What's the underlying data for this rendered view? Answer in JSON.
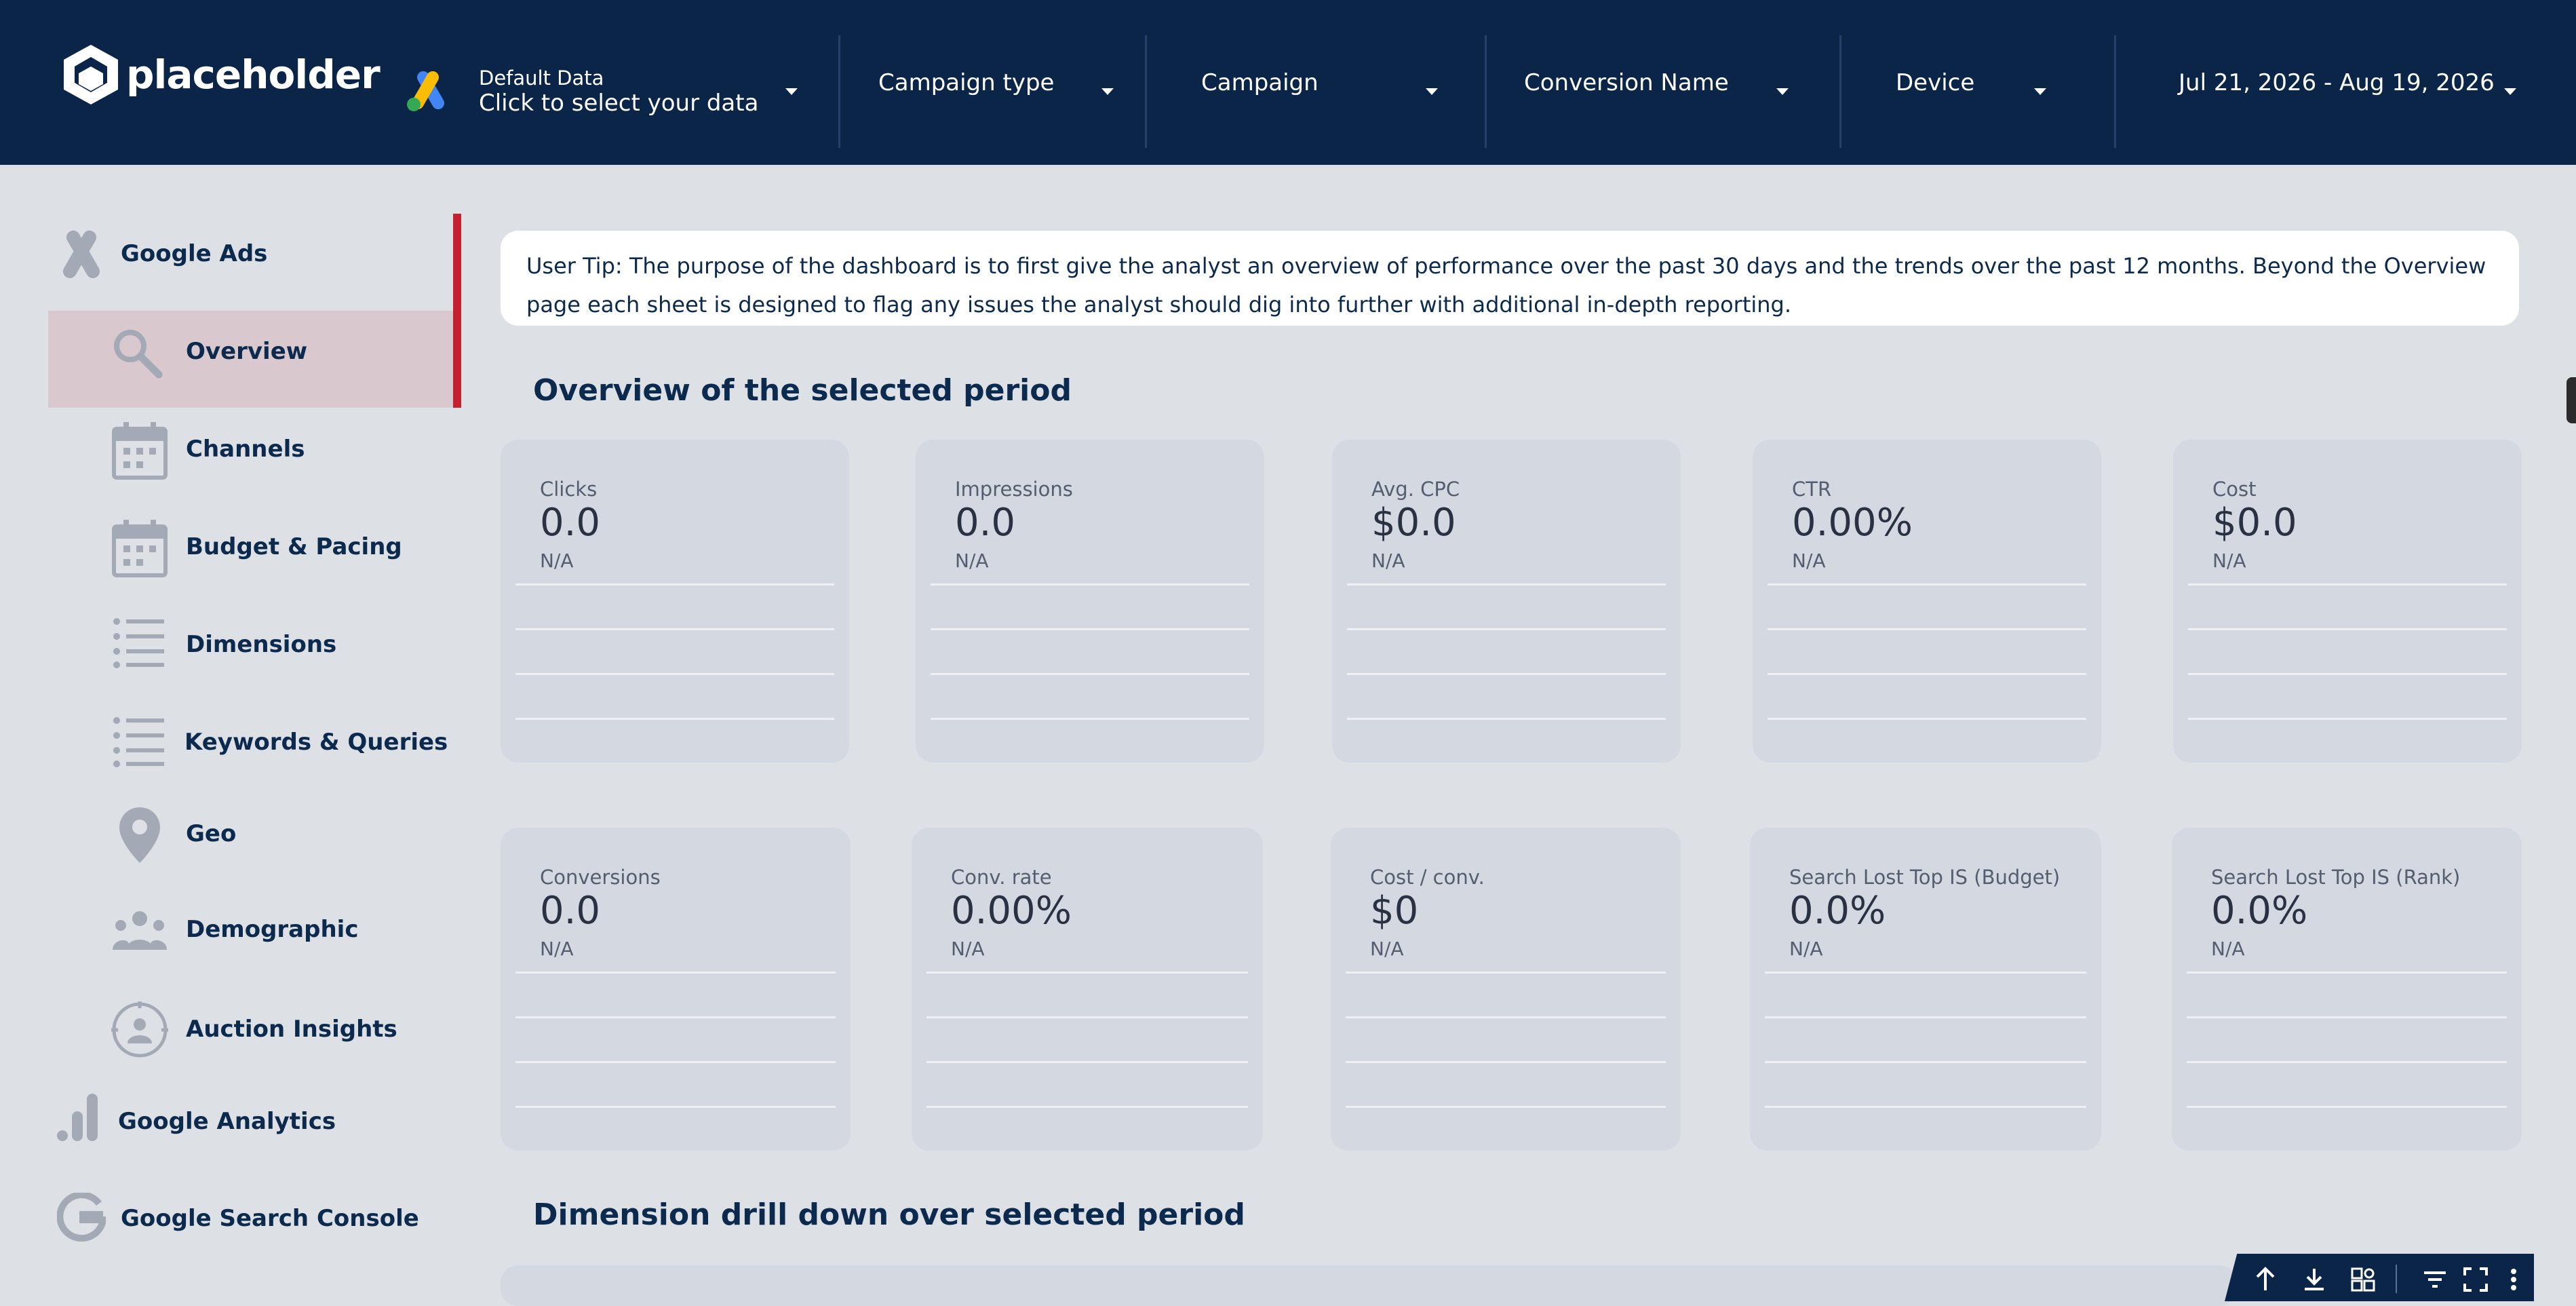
{
  "header": {
    "brand": "placeholder",
    "data_source": {
      "title": "Default Data",
      "subtitle": "Click to select your data"
    },
    "filters": [
      {
        "label": "Campaign type"
      },
      {
        "label": "Campaign"
      },
      {
        "label": "Conversion Name"
      },
      {
        "label": "Device"
      }
    ],
    "date_range": "Jul 21, 2026 - Aug 19, 2026"
  },
  "sidebar": {
    "sections": [
      {
        "label": "Google Ads",
        "icon": "google-ads-icon"
      },
      {
        "label": "Google Analytics",
        "icon": "google-analytics-icon"
      },
      {
        "label": "Google Search Console",
        "icon": "google-g-icon"
      }
    ],
    "items": [
      {
        "label": "Overview",
        "icon": "search-icon",
        "active": true
      },
      {
        "label": "Channels",
        "icon": "calendar-icon"
      },
      {
        "label": "Budget & Pacing",
        "icon": "calendar-icon"
      },
      {
        "label": "Dimensions",
        "icon": "list-icon"
      },
      {
        "label": "Keywords & Queries",
        "icon": "list-icon"
      },
      {
        "label": "Geo",
        "icon": "map-pin-icon"
      },
      {
        "label": "Demographic",
        "icon": "people-icon"
      },
      {
        "label": "Auction Insights",
        "icon": "auction-icon"
      }
    ],
    "active_color": "#c4202f"
  },
  "tip": "User Tip: The purpose of the dashboard is to first give the analyst an overview of performance over the past 30 days and the trends over the past 12 months. Beyond the Overview page each sheet is designed to flag any issues the analyst should dig into further with additional in-depth reporting.",
  "overview": {
    "title": "Overview of the selected period",
    "row1": [
      {
        "label": "Clicks",
        "value": "0.0",
        "note": "N/A"
      },
      {
        "label": "Impressions",
        "value": "0.0",
        "note": "N/A"
      },
      {
        "label": "Avg. CPC",
        "value": "$0.0",
        "note": "N/A"
      },
      {
        "label": "CTR",
        "value": "0.00%",
        "note": "N/A"
      },
      {
        "label": "Cost",
        "value": "$0.0",
        "note": "N/A"
      }
    ],
    "row2": [
      {
        "label": "Conversions",
        "value": "0.0",
        "note": "N/A"
      },
      {
        "label": "Conv. rate",
        "value": "0.00%",
        "note": "N/A"
      },
      {
        "label": "Cost / conv.",
        "value": "$0",
        "note": "N/A"
      },
      {
        "label": "Search Lost Top IS (Budget)",
        "value": "0.0%",
        "note": "N/A"
      },
      {
        "label": "Search Lost Top IS (Rank)",
        "value": "0.0%",
        "note": "N/A"
      }
    ]
  },
  "drilldown": {
    "title": "Dimension drill down over selected period"
  },
  "toolbar": {
    "icons": [
      "arrow-up-icon",
      "download-icon",
      "explore-icon",
      "filter-icon",
      "fullscreen-icon",
      "more-vert-icon"
    ]
  },
  "colors": {
    "header_bg": "#0a2548",
    "page_bg": "#dde1e6",
    "card_bg": "#d3d8e1",
    "accent": "#c4202f"
  }
}
